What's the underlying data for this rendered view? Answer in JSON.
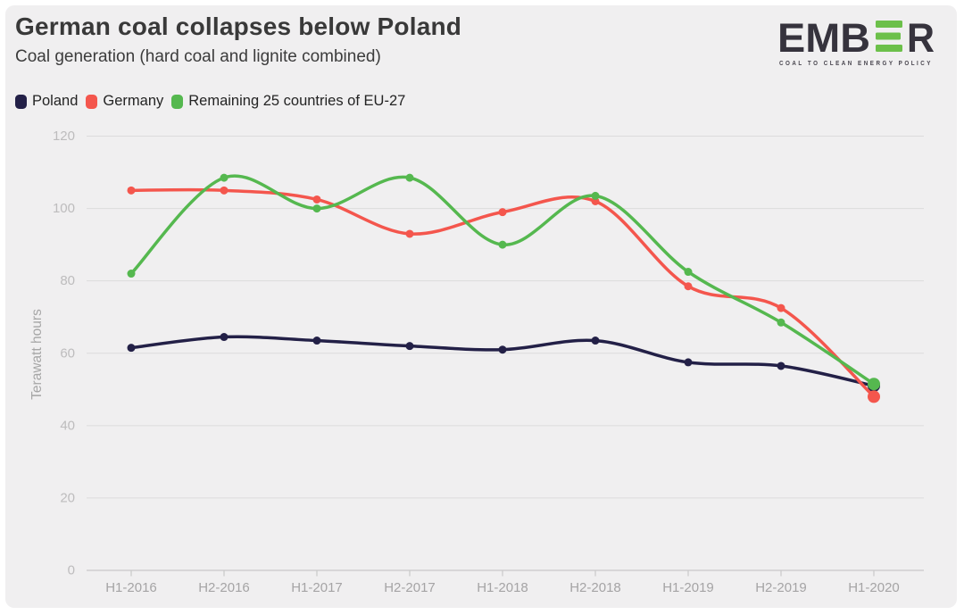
{
  "page": {
    "title": "German coal collapses below Poland",
    "subtitle": "Coal generation (hard coal and lignite combined)"
  },
  "logo": {
    "text_left": "EMB",
    "text_right": "R",
    "tagline": "COAL TO CLEAN ENERGY POLICY",
    "bar_color": "#6cc04a",
    "text_color": "#36333d",
    "tagline_color": "#49464f"
  },
  "chart_data": {
    "type": "line",
    "title": "German coal collapses below Poland",
    "subtitle": "Coal generation (hard coal and lignite combined)",
    "categories": [
      "H1-2016",
      "H2-2016",
      "H1-2017",
      "H2-2017",
      "H1-2018",
      "H2-2018",
      "H1-2019",
      "H2-2019",
      "H1-2020"
    ],
    "series": [
      {
        "name": "Poland",
        "color": "#232047",
        "values": [
          61.5,
          64.5,
          63.5,
          62,
          61,
          63.5,
          57.5,
          56.5,
          51
        ]
      },
      {
        "name": "Germany",
        "color": "#f4564d",
        "values": [
          105,
          105,
          102.5,
          93,
          99,
          102,
          78.5,
          72.5,
          48
        ]
      },
      {
        "name": "Remaining 25 countries of EU-27",
        "color": "#55b84f",
        "values": [
          82,
          108.5,
          100,
          108.5,
          90,
          103.5,
          82.5,
          68.5,
          51.5
        ]
      }
    ],
    "xlabel": "",
    "ylabel": "Terawatt hours",
    "ylim": [
      0,
      120
    ],
    "yticks": [
      0,
      20,
      40,
      60,
      80,
      100,
      120
    ],
    "grid": "horizontal gridlines only",
    "legend_position": "top-left",
    "curve": "smooth spline with point markers, enlarged markers on final point"
  }
}
